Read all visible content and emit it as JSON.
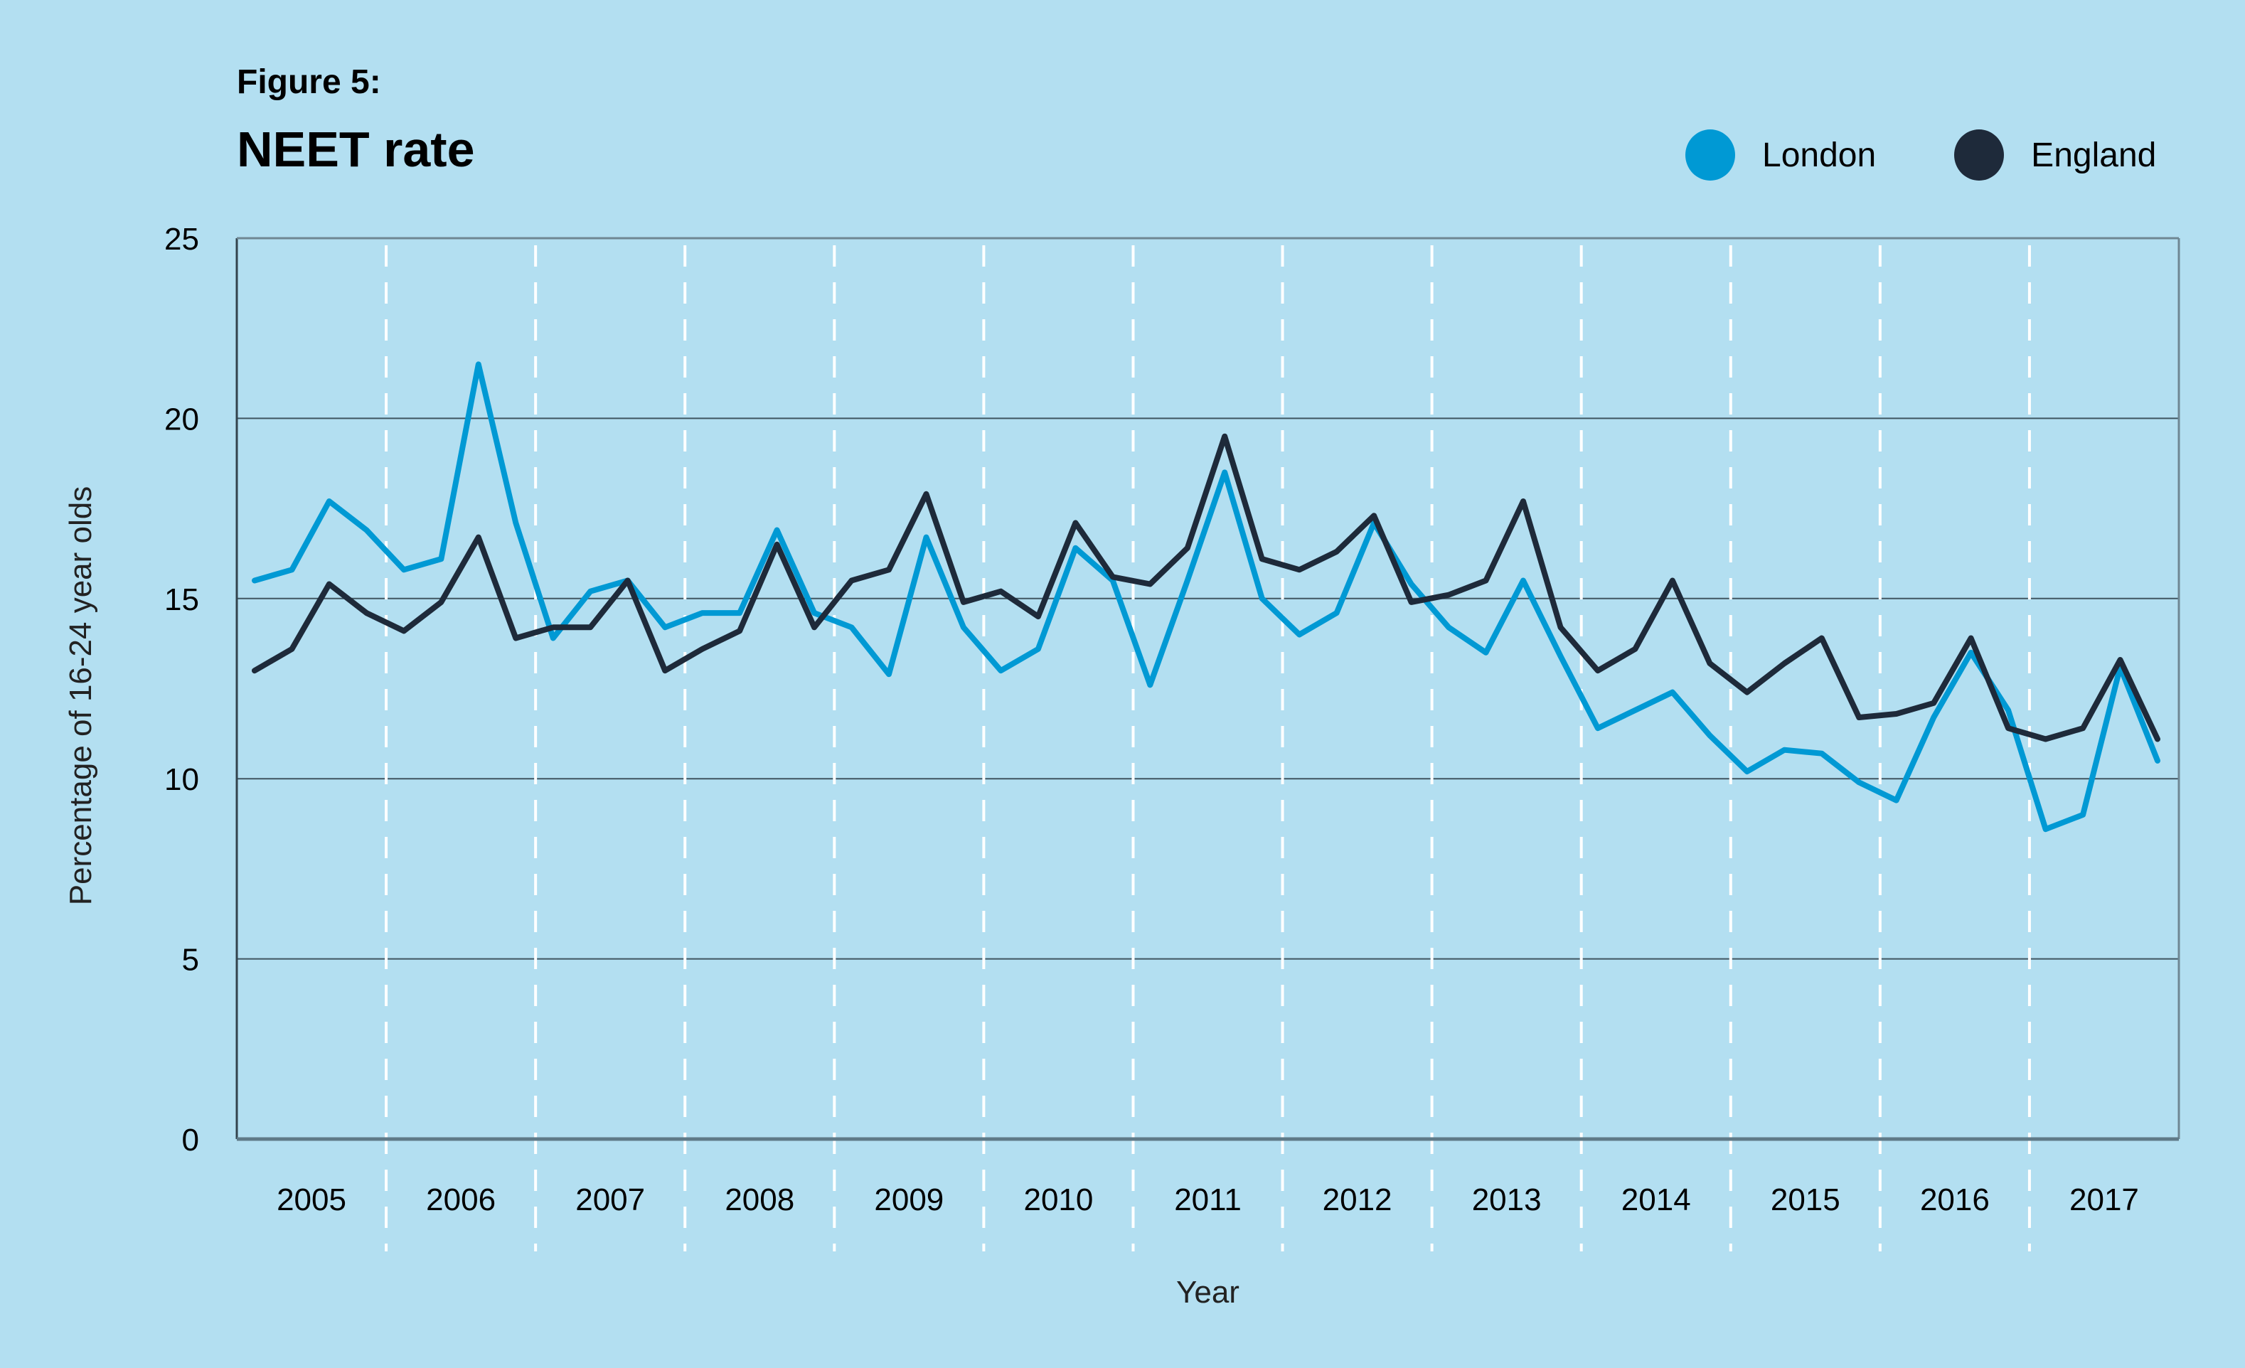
{
  "header": {
    "figure_label": "Figure 5:",
    "title": "NEET rate"
  },
  "legend": [
    {
      "name": "London",
      "color": "#0099d4",
      "icon": "circle-marker"
    },
    {
      "name": "England",
      "color": "#1e2a3a",
      "icon": "circle-marker"
    }
  ],
  "chart_data": {
    "type": "line",
    "title": "NEET rate",
    "subtitle": "Figure 5:",
    "xlabel": "Year",
    "ylabel": "Percentage of 16-24 year olds",
    "ylim": [
      0,
      25
    ],
    "yticks": [
      0,
      5,
      10,
      15,
      20,
      25
    ],
    "ytick_labels": [
      "0",
      "5",
      "10",
      "15",
      "20",
      "25"
    ],
    "x_categories": [
      "2005",
      "2006",
      "2007",
      "2008",
      "2009",
      "2010",
      "2011",
      "2012",
      "2013",
      "2014",
      "2015",
      "2016",
      "2017"
    ],
    "x_frequency": "quarterly",
    "grid": "horizontal solid at y ticks; vertical dashed white between years",
    "legend_position": "top-right",
    "series": [
      {
        "name": "London",
        "color": "#0099d4",
        "values": [
          15.5,
          15.8,
          17.7,
          16.9,
          15.8,
          16.1,
          21.5,
          17.1,
          13.9,
          15.2,
          15.5,
          14.2,
          14.6,
          14.6,
          16.9,
          14.6,
          14.2,
          12.9,
          16.7,
          14.2,
          13.0,
          13.6,
          16.4,
          15.5,
          12.6,
          15.5,
          18.5,
          15.0,
          14.0,
          14.6,
          17.1,
          15.4,
          14.2,
          13.5,
          15.5,
          13.4,
          11.4,
          11.9,
          12.4,
          11.2,
          10.2,
          10.8,
          10.7,
          9.9,
          9.4,
          11.7,
          13.5,
          11.9,
          8.6,
          9.0,
          13.1,
          10.5
        ]
      },
      {
        "name": "England",
        "color": "#1e2a3a",
        "values": [
          13.0,
          13.6,
          15.4,
          14.6,
          14.1,
          14.9,
          16.7,
          13.9,
          14.2,
          14.2,
          15.5,
          13.0,
          13.6,
          14.1,
          16.5,
          14.2,
          15.5,
          15.8,
          17.9,
          14.9,
          15.2,
          14.5,
          17.1,
          15.6,
          15.4,
          16.4,
          19.5,
          16.1,
          15.8,
          16.3,
          17.3,
          14.9,
          15.1,
          15.5,
          17.7,
          14.2,
          13.0,
          13.6,
          15.5,
          13.2,
          12.4,
          13.2,
          13.9,
          11.7,
          11.8,
          12.1,
          13.9,
          11.4,
          11.1,
          11.4,
          13.3,
          11.1
        ]
      }
    ]
  }
}
